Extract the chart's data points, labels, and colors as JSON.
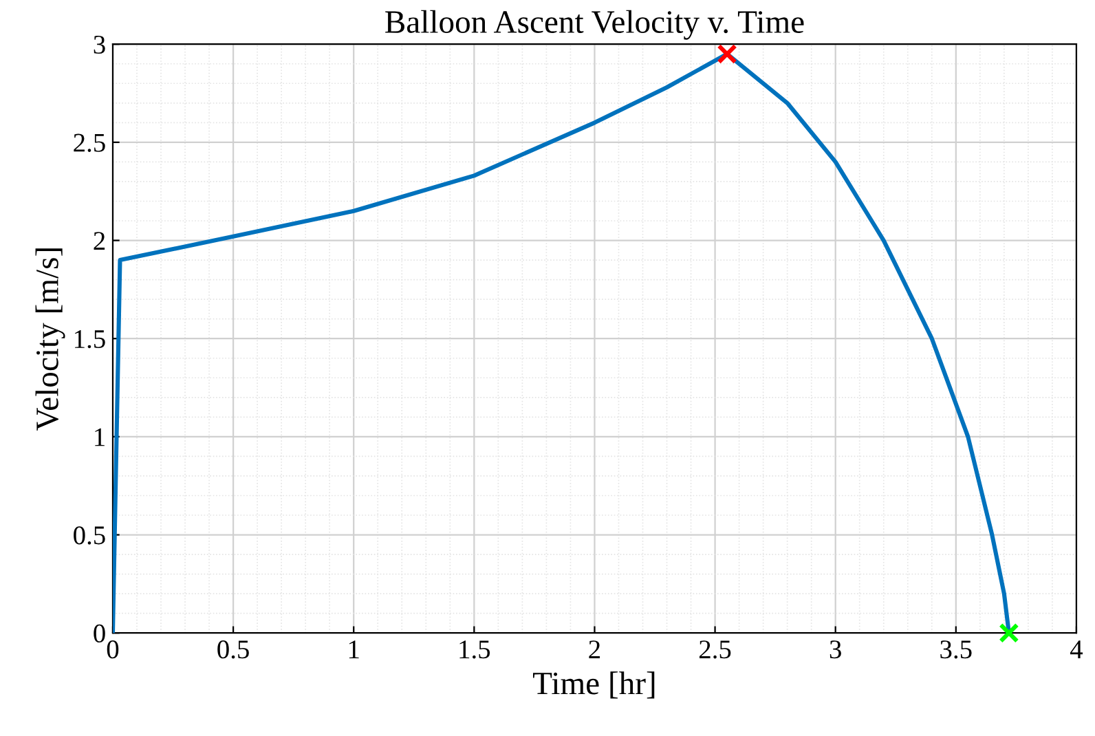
{
  "chart_data": {
    "type": "line",
    "title": "Balloon Ascent Velocity v. Time",
    "xlabel": "Time [hr]",
    "ylabel": "Velocity [m/s]",
    "xlim": [
      0,
      4
    ],
    "ylim": [
      0,
      3
    ],
    "xticks": [
      0,
      0.5,
      1,
      1.5,
      2,
      2.5,
      3,
      3.5,
      4
    ],
    "yticks": [
      0,
      0.5,
      1,
      1.5,
      2,
      2.5,
      3
    ],
    "grid": true,
    "series": [
      {
        "color": "#0072bd",
        "marker": "none",
        "x": [
          0,
          0.03,
          0.5,
          1.0,
          1.5,
          2.0,
          2.3,
          2.55,
          2.8,
          3.0,
          3.2,
          3.4,
          3.55,
          3.65,
          3.7,
          3.72
        ],
        "values": [
          0,
          1.9,
          2.02,
          2.15,
          2.33,
          2.6,
          2.78,
          2.95,
          2.7,
          2.4,
          2.0,
          1.5,
          1.0,
          0.5,
          0.2,
          0
        ]
      },
      {
        "type": "scatter",
        "color": "#ff0000",
        "marker": "cross",
        "x": [
          2.55
        ],
        "values": [
          2.95
        ]
      },
      {
        "type": "scatter",
        "color": "#00ff00",
        "marker": "cross",
        "x": [
          3.72
        ],
        "values": [
          0
        ]
      }
    ]
  }
}
